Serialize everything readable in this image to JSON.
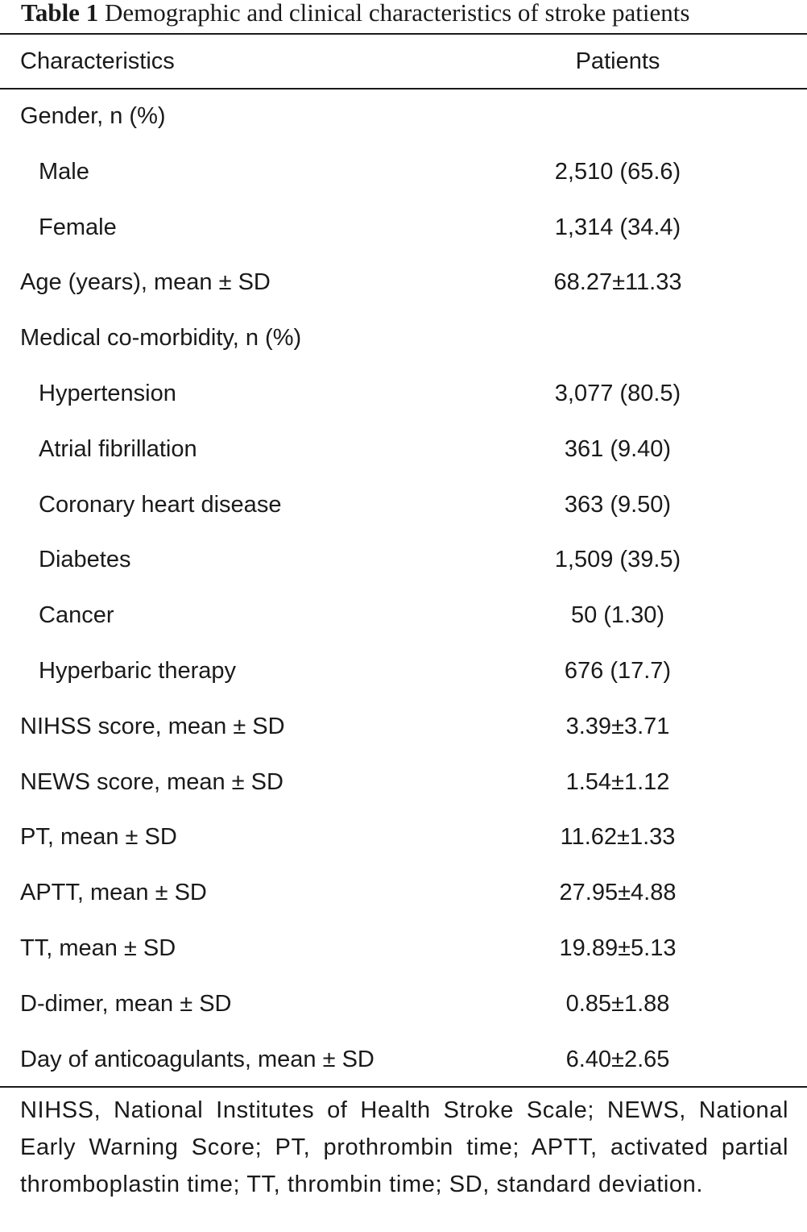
{
  "caption": {
    "label": "Table 1",
    "title": "Demographic and clinical characteristics of stroke patients"
  },
  "table": {
    "headers": {
      "characteristics": "Characteristics",
      "patients": "Patients"
    },
    "rows": [
      {
        "name": "Gender, n (%)",
        "value": "",
        "indent": false
      },
      {
        "name": "Male",
        "value": "2,510 (65.6)",
        "indent": true
      },
      {
        "name": "Female",
        "value": "1,314 (34.4)",
        "indent": true
      },
      {
        "name": "Age (years), mean ± SD",
        "value": "68.27±11.33",
        "indent": false
      },
      {
        "name": "Medical co-morbidity, n (%)",
        "value": "",
        "indent": false
      },
      {
        "name": "Hypertension",
        "value": "3,077 (80.5)",
        "indent": true
      },
      {
        "name": "Atrial fibrillation",
        "value": "361 (9.40)",
        "indent": true
      },
      {
        "name": "Coronary heart disease",
        "value": "363 (9.50)",
        "indent": true
      },
      {
        "name": "Diabetes",
        "value": "1,509 (39.5)",
        "indent": true
      },
      {
        "name": "Cancer",
        "value": "50 (1.30)",
        "indent": true
      },
      {
        "name": "Hyperbaric therapy",
        "value": "676 (17.7)",
        "indent": true
      },
      {
        "name": "NIHSS score, mean ± SD",
        "value": "3.39±3.71",
        "indent": false
      },
      {
        "name": "NEWS score, mean ± SD",
        "value": "1.54±1.12",
        "indent": false
      },
      {
        "name": "PT, mean ± SD",
        "value": "11.62±1.33",
        "indent": false
      },
      {
        "name": "APTT, mean ± SD",
        "value": "27.95±4.88",
        "indent": false
      },
      {
        "name": "TT, mean ± SD",
        "value": "19.89±5.13",
        "indent": false
      },
      {
        "name": "D-dimer, mean ± SD",
        "value": "0.85±1.88",
        "indent": false
      },
      {
        "name": "Day of anticoagulants, mean ± SD",
        "value": "6.40±2.65",
        "indent": false
      }
    ]
  },
  "footnote": "NIHSS, National Institutes of Health Stroke Scale; NEWS, National Early Warning Score; PT, prothrombin time; APTT, activated partial thromboplastin time; TT, thrombin time; SD, standard deviation."
}
